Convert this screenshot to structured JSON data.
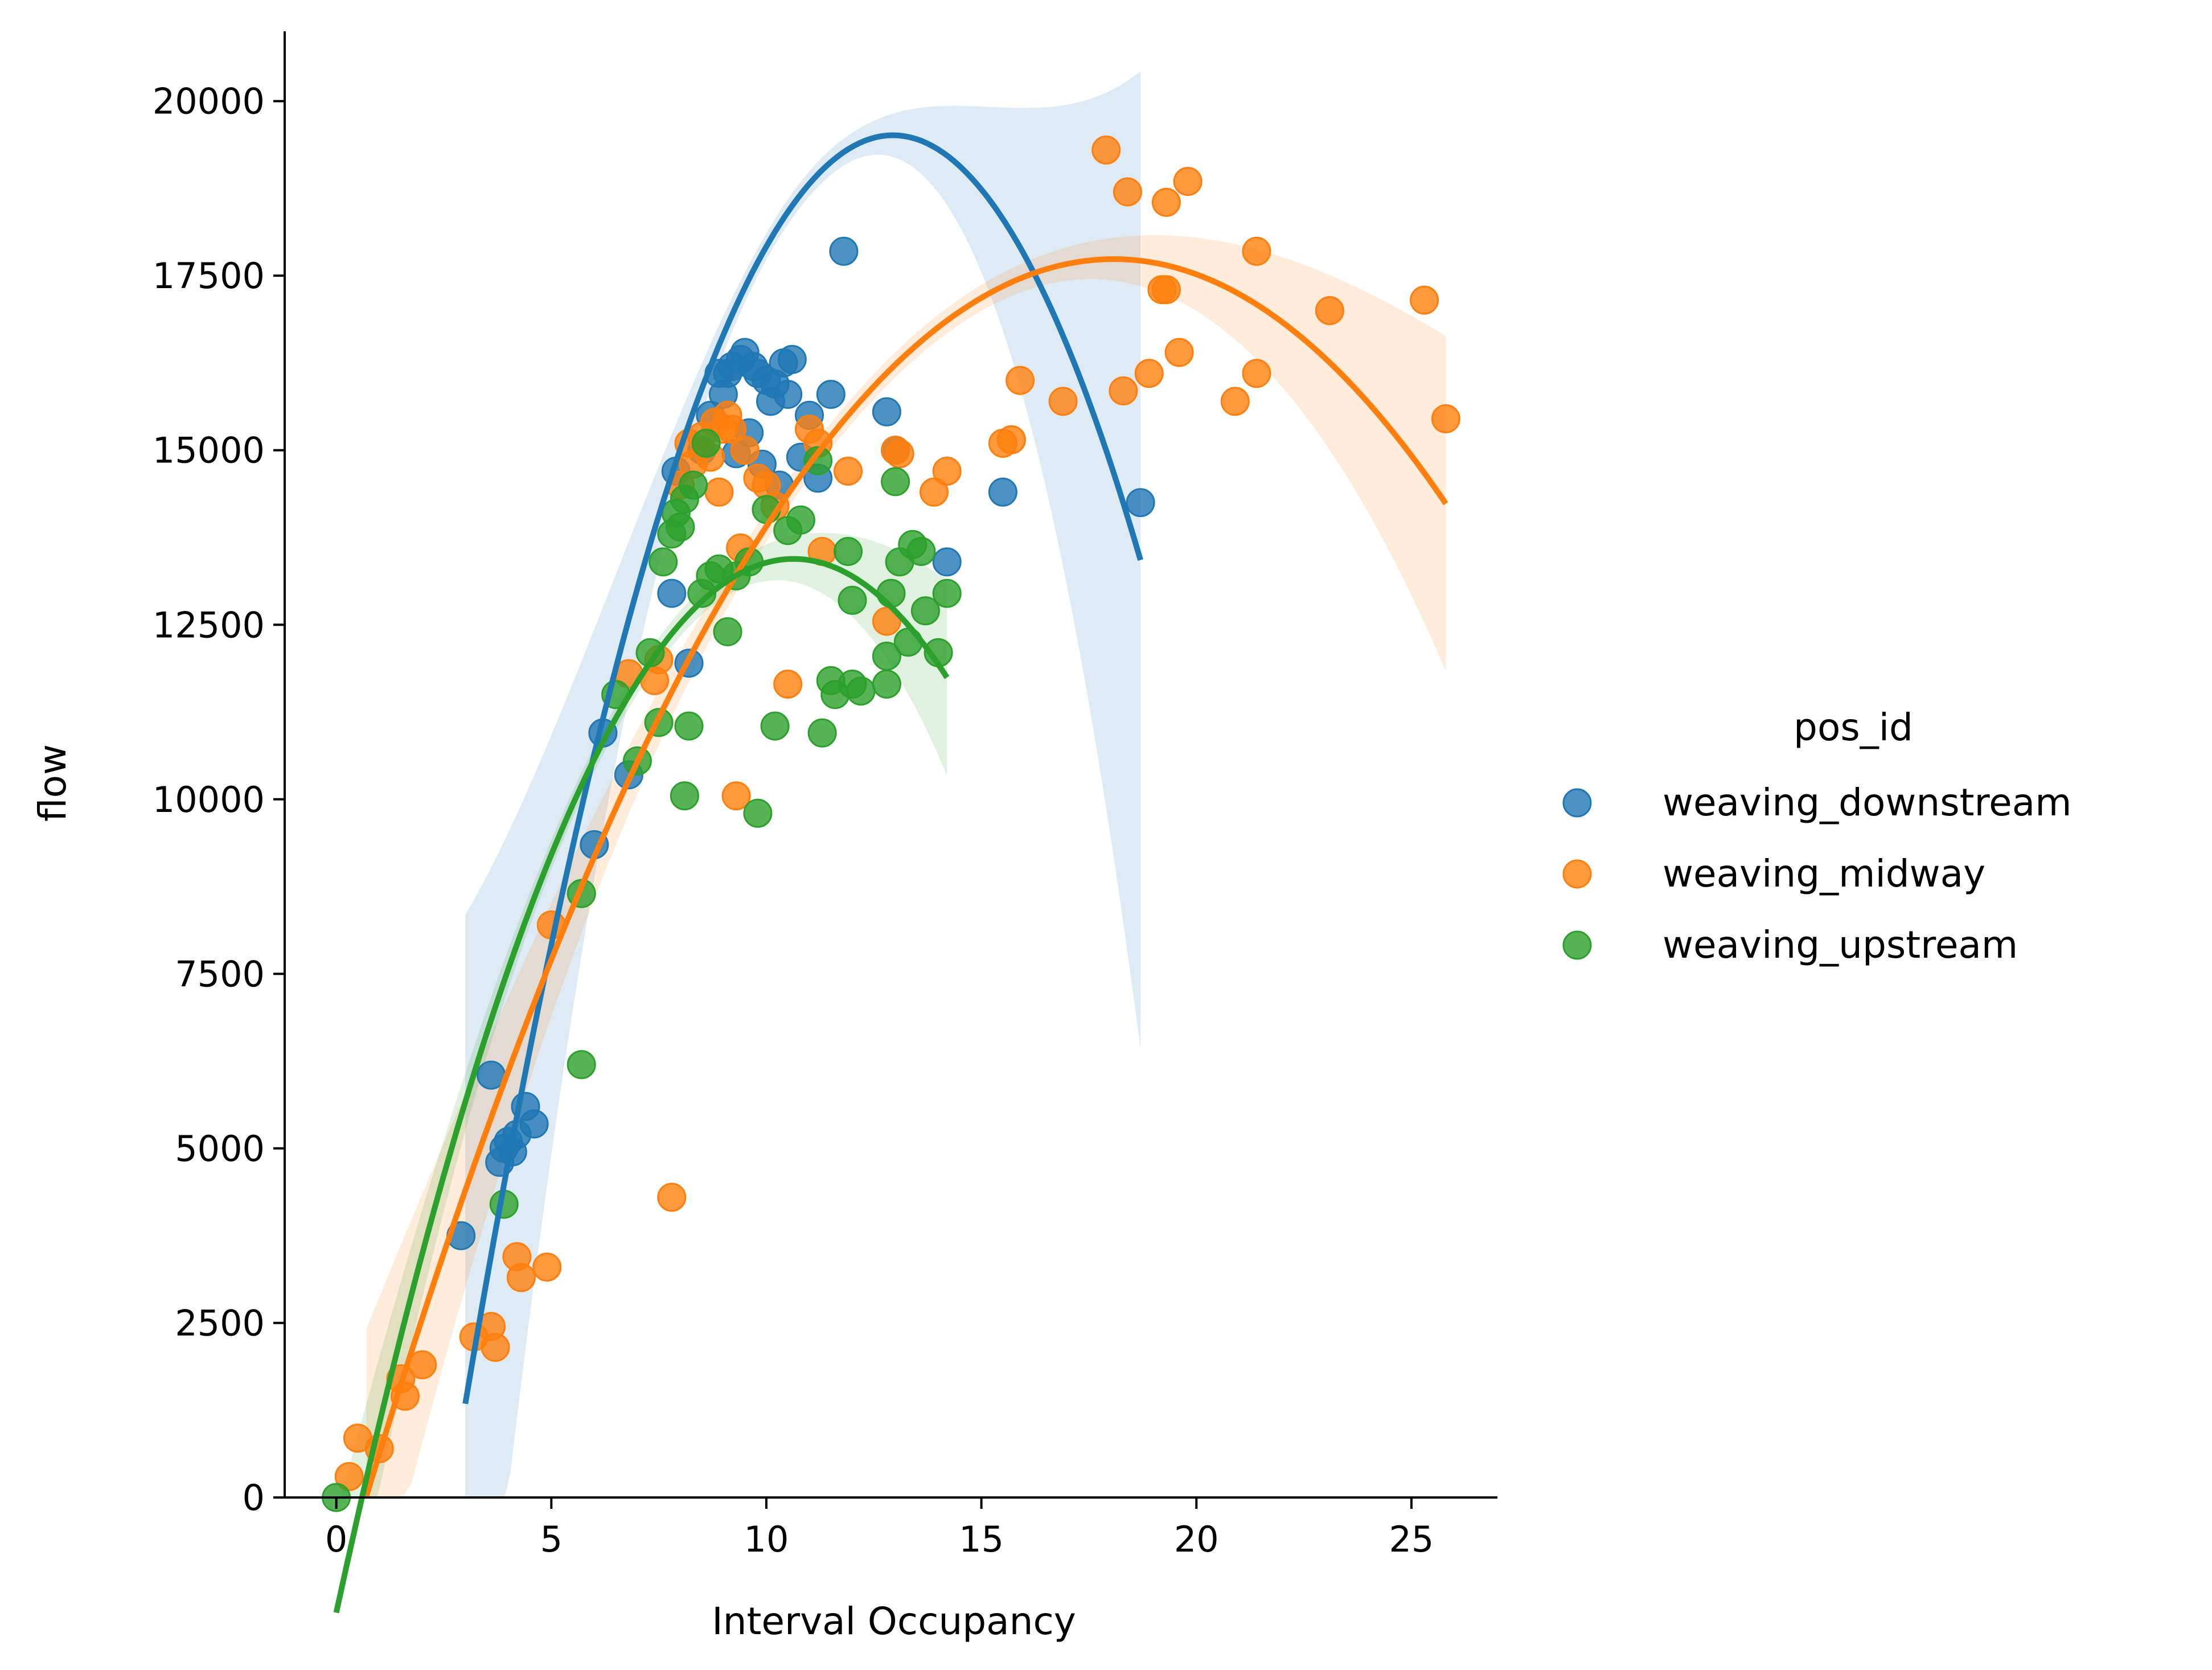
{
  "chart_data": {
    "type": "scatter",
    "title": "",
    "xlabel": "Interval Occupancy",
    "ylabel": "flow",
    "xlim": [
      -1.2,
      27
    ],
    "ylim": [
      0,
      21000
    ],
    "xticks": [
      "0",
      "5",
      "10",
      "15",
      "20",
      "25"
    ],
    "xtick_values": [
      0,
      5,
      10,
      15,
      20,
      25
    ],
    "yticks": [
      "0",
      "2500",
      "5000",
      "7500",
      "10000",
      "12500",
      "15000",
      "17500",
      "20000"
    ],
    "ytick_values": [
      0,
      2500,
      5000,
      7500,
      10000,
      12500,
      15000,
      17500,
      20000
    ],
    "grid": false,
    "legend": {
      "title": "pos_id",
      "placement": "right",
      "entries": [
        "weaving_downstream",
        "weaving_midway",
        "weaving_upstream"
      ]
    },
    "series": [
      {
        "name": "weaving_downstream",
        "color": "#1f77b4",
        "fit": {
          "a": -183.7,
          "b": 4756,
          "c": -11272,
          "xmin": 3.0,
          "xmax": 18.7,
          "ci_at_max": 7000
        },
        "points": [
          [
            2.9,
            3750
          ],
          [
            3.6,
            6050
          ],
          [
            3.8,
            4800
          ],
          [
            3.9,
            5000
          ],
          [
            4.0,
            5100
          ],
          [
            4.1,
            4950
          ],
          [
            4.2,
            5200
          ],
          [
            4.4,
            5600
          ],
          [
            4.6,
            5350
          ],
          [
            6.0,
            9350
          ],
          [
            6.2,
            10950
          ],
          [
            6.8,
            10350
          ],
          [
            7.8,
            12950
          ],
          [
            7.9,
            14700
          ],
          [
            8.2,
            11950
          ],
          [
            8.5,
            15000
          ],
          [
            8.7,
            15500
          ],
          [
            8.9,
            16100
          ],
          [
            9.0,
            15800
          ],
          [
            9.1,
            16100
          ],
          [
            9.2,
            16200
          ],
          [
            9.3,
            14950
          ],
          [
            9.4,
            16300
          ],
          [
            9.5,
            16400
          ],
          [
            9.6,
            15250
          ],
          [
            9.7,
            16200
          ],
          [
            9.8,
            16100
          ],
          [
            9.9,
            14800
          ],
          [
            10.0,
            16000
          ],
          [
            10.1,
            15700
          ],
          [
            10.2,
            15950
          ],
          [
            10.3,
            14500
          ],
          [
            10.4,
            16250
          ],
          [
            10.5,
            15800
          ],
          [
            10.6,
            16300
          ],
          [
            10.8,
            14900
          ],
          [
            11.0,
            15500
          ],
          [
            11.2,
            14600
          ],
          [
            11.5,
            15800
          ],
          [
            11.8,
            17850
          ],
          [
            12.8,
            15550
          ],
          [
            13.0,
            15000
          ],
          [
            14.2,
            13400
          ],
          [
            15.5,
            14400
          ],
          [
            18.7,
            14250
          ]
        ]
      },
      {
        "name": "weaving_midway",
        "color": "#ff7f0e",
        "fit": {
          "a": -58.7,
          "b": 2122,
          "c": -1440,
          "xmin": 0.7,
          "xmax": 25.8,
          "ci_at_max": 2400
        },
        "points": [
          [
            0.3,
            300
          ],
          [
            0.5,
            850
          ],
          [
            1.0,
            700
          ],
          [
            1.5,
            1700
          ],
          [
            1.6,
            1450
          ],
          [
            2.0,
            1900
          ],
          [
            3.2,
            2300
          ],
          [
            3.6,
            2450
          ],
          [
            3.7,
            2150
          ],
          [
            4.2,
            3450
          ],
          [
            4.3,
            3150
          ],
          [
            4.9,
            3300
          ],
          [
            5.0,
            8200
          ],
          [
            6.8,
            11800
          ],
          [
            7.4,
            11700
          ],
          [
            7.5,
            12000
          ],
          [
            7.8,
            4300
          ],
          [
            8.0,
            14500
          ],
          [
            8.2,
            15100
          ],
          [
            8.3,
            14800
          ],
          [
            8.5,
            15200
          ],
          [
            8.7,
            14900
          ],
          [
            8.8,
            15400
          ],
          [
            8.9,
            14400
          ],
          [
            9.0,
            15300
          ],
          [
            9.1,
            15500
          ],
          [
            9.2,
            15300
          ],
          [
            9.3,
            10050
          ],
          [
            9.4,
            13600
          ],
          [
            9.5,
            15000
          ],
          [
            9.8,
            14600
          ],
          [
            10.0,
            14500
          ],
          [
            10.2,
            14200
          ],
          [
            10.5,
            11650
          ],
          [
            11.0,
            15300
          ],
          [
            11.2,
            15100
          ],
          [
            11.3,
            13550
          ],
          [
            11.9,
            14700
          ],
          [
            12.8,
            12550
          ],
          [
            13.0,
            15000
          ],
          [
            13.1,
            14950
          ],
          [
            13.9,
            14400
          ],
          [
            14.2,
            14700
          ],
          [
            15.5,
            15100
          ],
          [
            15.7,
            15150
          ],
          [
            15.9,
            16000
          ],
          [
            16.9,
            15700
          ],
          [
            17.9,
            19300
          ],
          [
            18.3,
            15850
          ],
          [
            18.4,
            18700
          ],
          [
            18.9,
            16100
          ],
          [
            19.2,
            17300
          ],
          [
            19.3,
            17300
          ],
          [
            19.3,
            18550
          ],
          [
            19.6,
            16400
          ],
          [
            19.8,
            18850
          ],
          [
            20.9,
            15700
          ],
          [
            21.4,
            16100
          ],
          [
            21.4,
            17850
          ],
          [
            23.1,
            17000
          ],
          [
            25.3,
            17150
          ],
          [
            25.8,
            15450
          ]
        ]
      },
      {
        "name": "weaving_upstream",
        "color": "#2ca02c",
        "fit": {
          "a": -133.5,
          "b": 2839,
          "c": -1650,
          "xmin": 0.0,
          "xmax": 14.2,
          "ci_at_max": 1400
        },
        "points": [
          [
            0.0,
            0
          ],
          [
            3.9,
            4200
          ],
          [
            5.7,
            6200
          ],
          [
            5.7,
            8650
          ],
          [
            6.5,
            11500
          ],
          [
            7.0,
            10550
          ],
          [
            7.3,
            12100
          ],
          [
            7.5,
            11100
          ],
          [
            7.6,
            13400
          ],
          [
            7.8,
            13800
          ],
          [
            7.9,
            14100
          ],
          [
            8.0,
            13900
          ],
          [
            8.1,
            14300
          ],
          [
            8.1,
            10050
          ],
          [
            8.2,
            11050
          ],
          [
            8.3,
            14500
          ],
          [
            8.5,
            12950
          ],
          [
            8.6,
            15100
          ],
          [
            8.7,
            13200
          ],
          [
            8.9,
            13300
          ],
          [
            9.1,
            12400
          ],
          [
            9.3,
            13200
          ],
          [
            9.6,
            13400
          ],
          [
            9.8,
            9800
          ],
          [
            10.0,
            14150
          ],
          [
            10.2,
            11050
          ],
          [
            10.5,
            13850
          ],
          [
            10.8,
            14000
          ],
          [
            11.2,
            14850
          ],
          [
            11.3,
            10950
          ],
          [
            11.5,
            11700
          ],
          [
            11.6,
            11500
          ],
          [
            11.9,
            13550
          ],
          [
            12.0,
            12850
          ],
          [
            12.0,
            11650
          ],
          [
            12.2,
            11550
          ],
          [
            12.8,
            12050
          ],
          [
            12.8,
            11650
          ],
          [
            12.9,
            12950
          ],
          [
            13.0,
            14550
          ],
          [
            13.1,
            13400
          ],
          [
            13.3,
            12250
          ],
          [
            13.4,
            13650
          ],
          [
            13.6,
            13550
          ],
          [
            13.7,
            12700
          ],
          [
            14.0,
            12100
          ],
          [
            14.2,
            12950
          ]
        ]
      }
    ]
  }
}
